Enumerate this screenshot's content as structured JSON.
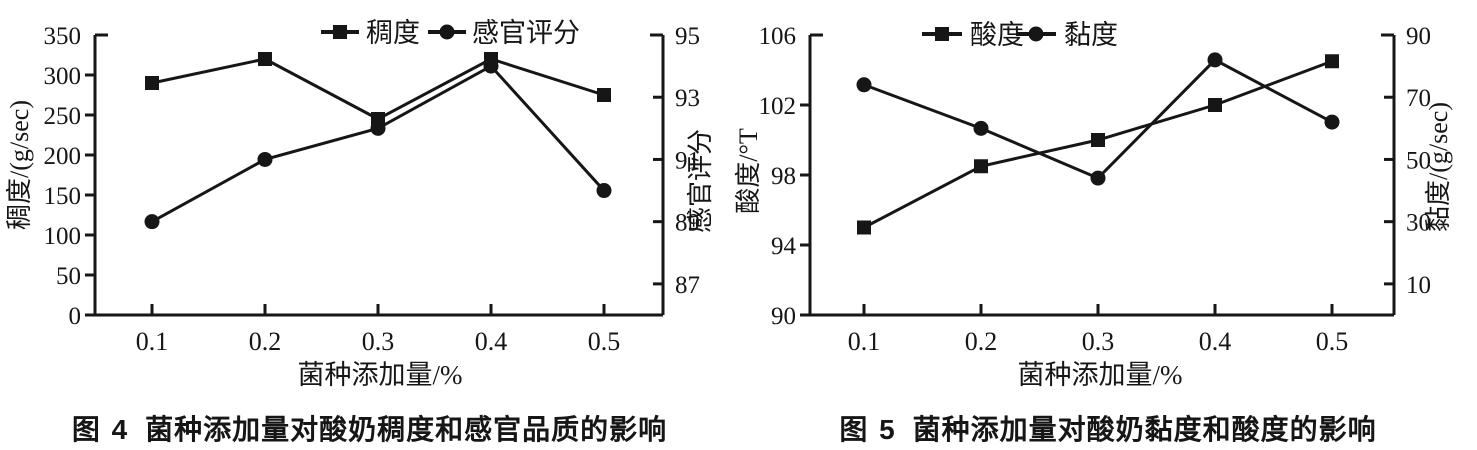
{
  "page": {
    "background": "#ffffff",
    "ink": "#161616"
  },
  "chart_data": [
    {
      "type": "line",
      "caption_label": "图 4",
      "caption_text": "菌种添加量对酸奶稠度和感官品质的影响",
      "xlabel": "菌种添加量/%",
      "x_categories": [
        "0.1",
        "0.2",
        "0.3",
        "0.4",
        "0.5"
      ],
      "grid": false,
      "legend_position": "top-center",
      "left_axis": {
        "label": "稠度/(g/sec)",
        "min": 0,
        "max": 350,
        "ticks": [
          0,
          50,
          100,
          150,
          200,
          250,
          300,
          350
        ]
      },
      "right_axis": {
        "label": "感官评分",
        "min": 86,
        "max": 95,
        "ticks": [
          87,
          89,
          91,
          93,
          95
        ]
      },
      "series": [
        {
          "name": "稠度",
          "axis": "left",
          "marker": "square",
          "values": [
            290,
            320,
            245,
            320,
            275
          ]
        },
        {
          "name": "感官评分",
          "axis": "right",
          "marker": "circle",
          "values": [
            89,
            91,
            92,
            94,
            90
          ]
        }
      ]
    },
    {
      "type": "line",
      "caption_label": "图 5",
      "caption_text": "菌种添加量对酸奶黏度和酸度的影响",
      "xlabel": "菌种添加量/%",
      "x_categories": [
        "0.1",
        "0.2",
        "0.3",
        "0.4",
        "0.5"
      ],
      "grid": false,
      "legend_position": "top-center",
      "left_axis": {
        "label": "酸度/°T",
        "min": 90,
        "max": 106,
        "ticks": [
          90,
          94,
          98,
          102,
          106
        ]
      },
      "right_axis": {
        "label": "黏度/(g/sec)",
        "min": 0,
        "max": 90,
        "ticks": [
          10,
          30,
          50,
          70,
          90
        ]
      },
      "series": [
        {
          "name": "酸度",
          "axis": "left",
          "marker": "square",
          "values": [
            95,
            98.5,
            100,
            102,
            104.5
          ]
        },
        {
          "name": "黏度",
          "axis": "right",
          "marker": "circle",
          "values": [
            74,
            60,
            44,
            82,
            62
          ]
        }
      ]
    }
  ]
}
